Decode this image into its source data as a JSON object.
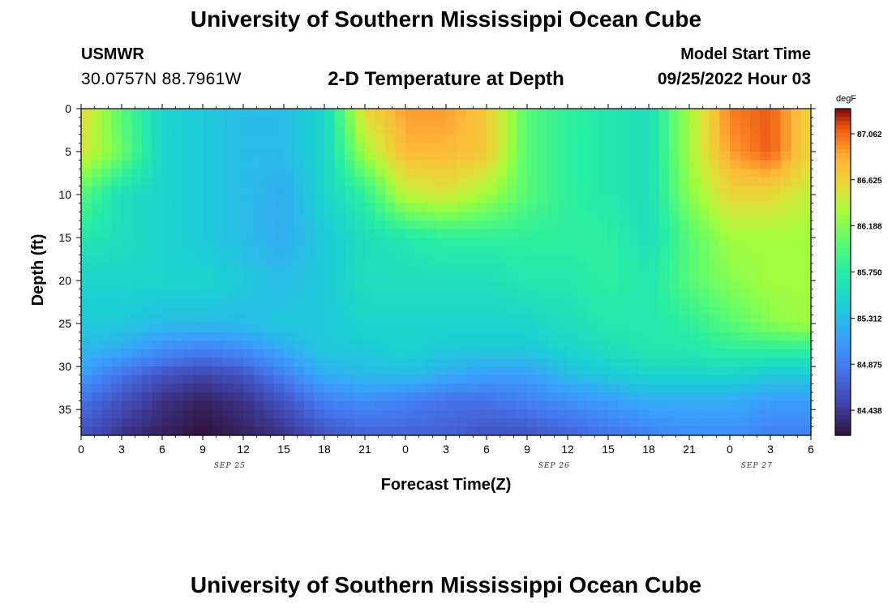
{
  "header": {
    "title": "University of Southern Mississippi Ocean Cube",
    "station": "USMWR",
    "coordinates": "30.0757N  88.7961W",
    "subtitle": "2-D Temperature at Depth",
    "model_start_label": "Model Start Time",
    "model_start_value": "09/25/2022 Hour 03"
  },
  "footer": {
    "title": "University of Southern Mississippi Ocean Cube"
  },
  "chart_data": {
    "type": "heatmap",
    "title": "2-D Temperature at Depth",
    "xlabel": "Forecast Time(Z)",
    "ylabel": "Depth (ft)",
    "xlim": [
      0,
      54
    ],
    "ylim": [
      38,
      0
    ],
    "x_tick_values": [
      0,
      3,
      6,
      9,
      12,
      15,
      18,
      21,
      24,
      27,
      30,
      33,
      36,
      39,
      42,
      45,
      48,
      51,
      54
    ],
    "x_tick_labels": [
      "0",
      "3",
      "6",
      "9",
      "12",
      "15",
      "18",
      "21",
      "0",
      "3",
      "6",
      "9",
      "12",
      "15",
      "18",
      "21",
      "0",
      "3",
      "6"
    ],
    "y_tick_values": [
      0,
      5,
      10,
      15,
      20,
      25,
      30,
      35
    ],
    "y_tick_labels": [
      "0",
      "5",
      "10",
      "15",
      "20",
      "25",
      "30",
      "35"
    ],
    "date_labels": [
      {
        "x": 11,
        "text": "SEP 25"
      },
      {
        "x": 35,
        "text": "SEP 26"
      },
      {
        "x": 50,
        "text": "SEP 27"
      }
    ],
    "colorbar": {
      "unit": "degF",
      "min": 84.2,
      "max": 87.3,
      "tick_values": [
        84.438,
        84.875,
        85.312,
        85.75,
        86.188,
        86.625,
        87.062
      ],
      "tick_labels": [
        "84.438",
        "84.875",
        "85.312",
        "85.750",
        "86.188",
        "86.625",
        "87.062"
      ]
    },
    "depth_levels": [
      0,
      5,
      10,
      15,
      20,
      25,
      28,
      31,
      34,
      38
    ],
    "time_columns": [
      0,
      3,
      6,
      9,
      12,
      15,
      18,
      21,
      24,
      27,
      30,
      33,
      36,
      39,
      42,
      45,
      48,
      51,
      54
    ],
    "temperature_degF": [
      [
        86.6,
        86.0,
        85.5,
        85.4,
        85.3,
        85.3,
        85.5,
        86.6,
        86.9,
        86.9,
        86.7,
        86.0,
        85.8,
        85.7,
        85.6,
        86.3,
        87.0,
        87.1,
        86.6
      ],
      [
        86.5,
        86.1,
        85.5,
        85.4,
        85.3,
        85.3,
        85.5,
        86.3,
        86.8,
        86.8,
        86.7,
        86.0,
        85.8,
        85.7,
        85.6,
        86.3,
        86.9,
        87.1,
        86.6
      ],
      [
        86.0,
        85.6,
        85.5,
        85.4,
        85.3,
        85.2,
        85.5,
        85.8,
        86.4,
        86.5,
        86.3,
        86.0,
        85.8,
        85.7,
        85.6,
        86.2,
        86.6,
        86.6,
        86.4
      ],
      [
        85.7,
        85.6,
        85.5,
        85.4,
        85.3,
        85.2,
        85.4,
        85.6,
        85.7,
        85.8,
        85.8,
        85.8,
        85.8,
        85.8,
        85.6,
        86.0,
        86.3,
        86.3,
        86.3
      ],
      [
        85.5,
        85.5,
        85.5,
        85.5,
        85.4,
        85.3,
        85.4,
        85.6,
        85.6,
        85.6,
        85.6,
        85.7,
        85.7,
        85.8,
        85.7,
        86.0,
        86.2,
        86.3,
        86.3
      ],
      [
        85.4,
        85.4,
        85.3,
        85.3,
        85.3,
        85.4,
        85.4,
        85.5,
        85.5,
        85.5,
        85.5,
        85.5,
        85.6,
        85.7,
        85.7,
        85.8,
        86.0,
        86.2,
        86.3
      ],
      [
        85.3,
        85.2,
        85.0,
        84.9,
        85.0,
        85.2,
        85.4,
        85.4,
        85.5,
        85.4,
        85.4,
        85.4,
        85.5,
        85.6,
        85.7,
        85.7,
        85.8,
        85.8,
        85.8
      ],
      [
        85.1,
        84.8,
        84.6,
        84.5,
        84.6,
        84.9,
        85.2,
        85.3,
        85.3,
        85.2,
        85.1,
        85.1,
        85.3,
        85.4,
        85.5,
        85.5,
        85.5,
        85.4,
        85.4
      ],
      [
        84.8,
        84.6,
        84.4,
        84.3,
        84.4,
        84.6,
        84.9,
        85.0,
        84.9,
        84.8,
        84.8,
        84.9,
        85.0,
        85.1,
        85.2,
        85.2,
        85.2,
        85.1,
        85.1
      ],
      [
        84.6,
        84.4,
        84.3,
        84.2,
        84.3,
        84.4,
        84.6,
        84.7,
        84.7,
        84.7,
        84.6,
        84.6,
        84.7,
        84.8,
        84.9,
        85.0,
        85.0,
        84.9,
        84.9
      ]
    ]
  }
}
